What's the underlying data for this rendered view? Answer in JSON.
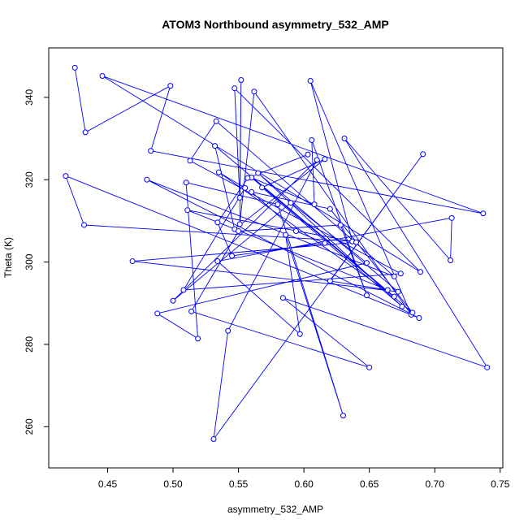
{
  "chart_data": {
    "type": "line",
    "title": "ATOM3 Northbound asymmetry_532_AMP",
    "xlabel": "asymmetry_532_AMP",
    "ylabel": "Theta (K)",
    "xlim": [
      0.405,
      0.752
    ],
    "ylim": [
      250,
      352
    ],
    "xticks": [
      0.45,
      0.5,
      0.55,
      0.6,
      0.65,
      0.7,
      0.75
    ],
    "xtick_labels": [
      "0.45",
      "0.50",
      "0.55",
      "0.60",
      "0.65",
      "0.70",
      "0.75"
    ],
    "yticks": [
      260,
      280,
      300,
      320,
      340
    ],
    "ytick_labels": [
      "260",
      "280",
      "300",
      "320",
      "340"
    ],
    "grid": false,
    "series": [
      {
        "color": "#0000ff",
        "marker": "open-circle",
        "points": [
          [
            0.425,
            347.2
          ],
          [
            0.433,
            331.5
          ],
          [
            0.498,
            342.8
          ],
          [
            0.483,
            327.0
          ],
          [
            0.737,
            311.8
          ],
          [
            0.446,
            345.2
          ],
          [
            0.689,
            297.6
          ],
          [
            0.547,
            342.2
          ],
          [
            0.551,
            315.6
          ],
          [
            0.552,
            344.2
          ],
          [
            0.551,
            309.2
          ],
          [
            0.562,
            341.4
          ],
          [
            0.682,
            287.2
          ],
          [
            0.605,
            344.0
          ],
          [
            0.637,
            305.0
          ],
          [
            0.432,
            309.0
          ],
          [
            0.418,
            320.9
          ],
          [
            0.688,
            286.4
          ],
          [
            0.48,
            320.0
          ],
          [
            0.669,
            296.5
          ],
          [
            0.533,
            334.2
          ],
          [
            0.513,
            324.6
          ],
          [
            0.674,
            297.2
          ],
          [
            0.508,
            293.2
          ],
          [
            0.555,
            318.0
          ],
          [
            0.535,
            321.8
          ],
          [
            0.669,
            291.6
          ],
          [
            0.532,
            328.2
          ],
          [
            0.547,
            308.0
          ],
          [
            0.616,
            325.0
          ],
          [
            0.568,
            318.1
          ],
          [
            0.675,
            289.2
          ],
          [
            0.565,
            321.6
          ],
          [
            0.672,
            292.8
          ],
          [
            0.469,
            300.2
          ],
          [
            0.64,
            304.8
          ],
          [
            0.511,
            312.6
          ],
          [
            0.664,
            293.2
          ],
          [
            0.62,
            295.4
          ],
          [
            0.691,
            326.2
          ],
          [
            0.531,
            257.0
          ],
          [
            0.542,
            283.3
          ],
          [
            0.61,
            324.8
          ],
          [
            0.5,
            290.6
          ],
          [
            0.59,
            314.4
          ],
          [
            0.648,
            299.8
          ],
          [
            0.488,
            287.5
          ],
          [
            0.519,
            281.4
          ],
          [
            0.51,
            319.3
          ],
          [
            0.58,
            314.0
          ],
          [
            0.63,
            262.7
          ],
          [
            0.586,
            306.6
          ],
          [
            0.597,
            282.5
          ],
          [
            0.534,
            300.2
          ],
          [
            0.713,
            310.7
          ],
          [
            0.712,
            300.4
          ],
          [
            0.631,
            330.0
          ],
          [
            0.74,
            274.4
          ],
          [
            0.584,
            291.3
          ],
          [
            0.65,
            274.4
          ],
          [
            0.514,
            288.0
          ],
          [
            0.55,
            307.5
          ],
          [
            0.628,
            309.0
          ],
          [
            0.648,
            291.9
          ],
          [
            0.606,
            329.6
          ],
          [
            0.608,
            314.0
          ],
          [
            0.56,
            320.5
          ],
          [
            0.683,
            287.7
          ],
          [
            0.62,
            312.9
          ],
          [
            0.56,
            317.0
          ],
          [
            0.594,
            307.5
          ],
          [
            0.616,
            304.6
          ],
          [
            0.545,
            301.5
          ],
          [
            0.534,
            309.6
          ],
          [
            0.557,
            320.4
          ],
          [
            0.603,
            326.1
          ]
        ]
      }
    ]
  }
}
